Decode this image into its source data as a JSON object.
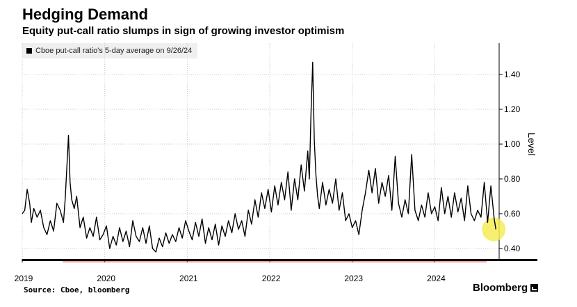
{
  "header": {
    "title": "Hedging Demand",
    "subtitle": "Equity put-call ratio slumps in sign of growing investor optimism"
  },
  "footer": {
    "source": "Source: Cboe, bloomberg",
    "brand": "Bloomberg"
  },
  "colors": {
    "line": "#000000",
    "grid": "#c8c8c8",
    "highlight": "#f5ec56",
    "baseline": "#e04040"
  },
  "icons": {
    "brand": "bloomberg-chart-icon",
    "legend": "black-square-swatch"
  },
  "chart_data": {
    "type": "line",
    "title": "Hedging Demand",
    "subtitle": "Equity put-call ratio slumps in sign of growing investor optimism",
    "ylabel": "Level",
    "xlabel": "",
    "ylim": [
      0.34,
      1.58
    ],
    "xlim": [
      2019.0,
      2024.78
    ],
    "x_ticks": [
      2019,
      2020,
      2021,
      2022,
      2023,
      2024
    ],
    "x_tick_labels": [
      "2019",
      "2020",
      "2021",
      "2022",
      "2023",
      "2024"
    ],
    "y_ticks": [
      0.4,
      0.6,
      0.8,
      1.0,
      1.2,
      1.4
    ],
    "y_tick_labels": [
      "0.40",
      "0.60",
      "0.80",
      "1.00",
      "1.20",
      "1.40"
    ],
    "grid": true,
    "legend_position": "top-left",
    "series": [
      {
        "name": "Cboe put-call ratio's 5-day average on 9/26/24",
        "x": [
          2019.0,
          2019.03,
          2019.06,
          2019.09,
          2019.11,
          2019.14,
          2019.18,
          2019.22,
          2019.26,
          2019.3,
          2019.34,
          2019.38,
          2019.42,
          2019.46,
          2019.5,
          2019.52,
          2019.54,
          2019.56,
          2019.58,
          2019.6,
          2019.63,
          2019.66,
          2019.7,
          2019.74,
          2019.78,
          2019.82,
          2019.86,
          2019.9,
          2019.94,
          2019.98,
          2020.02,
          2020.06,
          2020.1,
          2020.14,
          2020.18,
          2020.22,
          2020.26,
          2020.3,
          2020.34,
          2020.38,
          2020.42,
          2020.46,
          2020.5,
          2020.54,
          2020.58,
          2020.62,
          2020.66,
          2020.7,
          2020.74,
          2020.78,
          2020.82,
          2020.86,
          2020.9,
          2020.94,
          2020.98,
          2021.02,
          2021.06,
          2021.1,
          2021.14,
          2021.18,
          2021.22,
          2021.26,
          2021.3,
          2021.34,
          2021.38,
          2021.42,
          2021.46,
          2021.5,
          2021.54,
          2021.58,
          2021.62,
          2021.66,
          2021.7,
          2021.74,
          2021.78,
          2021.82,
          2021.86,
          2021.9,
          2021.94,
          2021.98,
          2022.02,
          2022.06,
          2022.1,
          2022.14,
          2022.18,
          2022.22,
          2022.26,
          2022.3,
          2022.34,
          2022.38,
          2022.42,
          2022.46,
          2022.48,
          2022.5,
          2022.52,
          2022.54,
          2022.56,
          2022.58,
          2022.6,
          2022.64,
          2022.68,
          2022.72,
          2022.76,
          2022.8,
          2022.84,
          2022.88,
          2022.92,
          2022.96,
          2023.0,
          2023.04,
          2023.08,
          2023.12,
          2023.16,
          2023.2,
          2023.24,
          2023.28,
          2023.32,
          2023.36,
          2023.4,
          2023.44,
          2023.48,
          2023.52,
          2023.56,
          2023.6,
          2023.64,
          2023.68,
          2023.72,
          2023.76,
          2023.8,
          2023.84,
          2023.88,
          2023.92,
          2023.96,
          2024.0,
          2024.04,
          2024.08,
          2024.12,
          2024.16,
          2024.2,
          2024.24,
          2024.28,
          2024.32,
          2024.36,
          2024.4,
          2024.44,
          2024.48,
          2024.52,
          2024.56,
          2024.6,
          2024.64,
          2024.68,
          2024.72,
          2024.74
        ],
        "values": [
          0.6,
          0.62,
          0.74,
          0.66,
          0.55,
          0.63,
          0.58,
          0.62,
          0.52,
          0.48,
          0.56,
          0.5,
          0.66,
          0.62,
          0.55,
          0.68,
          0.86,
          1.05,
          0.78,
          0.68,
          0.63,
          0.7,
          0.52,
          0.58,
          0.46,
          0.52,
          0.47,
          0.58,
          0.45,
          0.48,
          0.53,
          0.4,
          0.47,
          0.42,
          0.52,
          0.44,
          0.5,
          0.41,
          0.56,
          0.47,
          0.44,
          0.52,
          0.43,
          0.53,
          0.4,
          0.38,
          0.46,
          0.41,
          0.49,
          0.43,
          0.48,
          0.44,
          0.52,
          0.46,
          0.56,
          0.5,
          0.45,
          0.55,
          0.47,
          0.57,
          0.43,
          0.52,
          0.45,
          0.54,
          0.42,
          0.53,
          0.47,
          0.56,
          0.49,
          0.6,
          0.51,
          0.56,
          0.47,
          0.62,
          0.54,
          0.68,
          0.58,
          0.72,
          0.63,
          0.74,
          0.61,
          0.76,
          0.65,
          0.78,
          0.68,
          0.84,
          0.62,
          0.8,
          0.68,
          0.88,
          0.73,
          0.96,
          0.8,
          1.18,
          1.47,
          1.02,
          0.82,
          0.7,
          0.63,
          0.78,
          0.65,
          0.74,
          0.66,
          0.8,
          0.62,
          0.72,
          0.56,
          0.6,
          0.52,
          0.56,
          0.48,
          0.62,
          0.72,
          0.85,
          0.72,
          0.86,
          0.66,
          0.78,
          0.7,
          0.82,
          0.62,
          0.93,
          0.66,
          0.58,
          0.68,
          0.6,
          0.94,
          0.62,
          0.56,
          0.65,
          0.58,
          0.72,
          0.6,
          0.64,
          0.56,
          0.75,
          0.6,
          0.7,
          0.58,
          0.72,
          0.61,
          0.69,
          0.56,
          0.76,
          0.6,
          0.56,
          0.62,
          0.58,
          0.78,
          0.55,
          0.76,
          0.57,
          0.51
        ]
      }
    ],
    "annotations": [
      {
        "type": "highlight-circle",
        "x": 2024.74,
        "y": 0.51
      }
    ]
  }
}
